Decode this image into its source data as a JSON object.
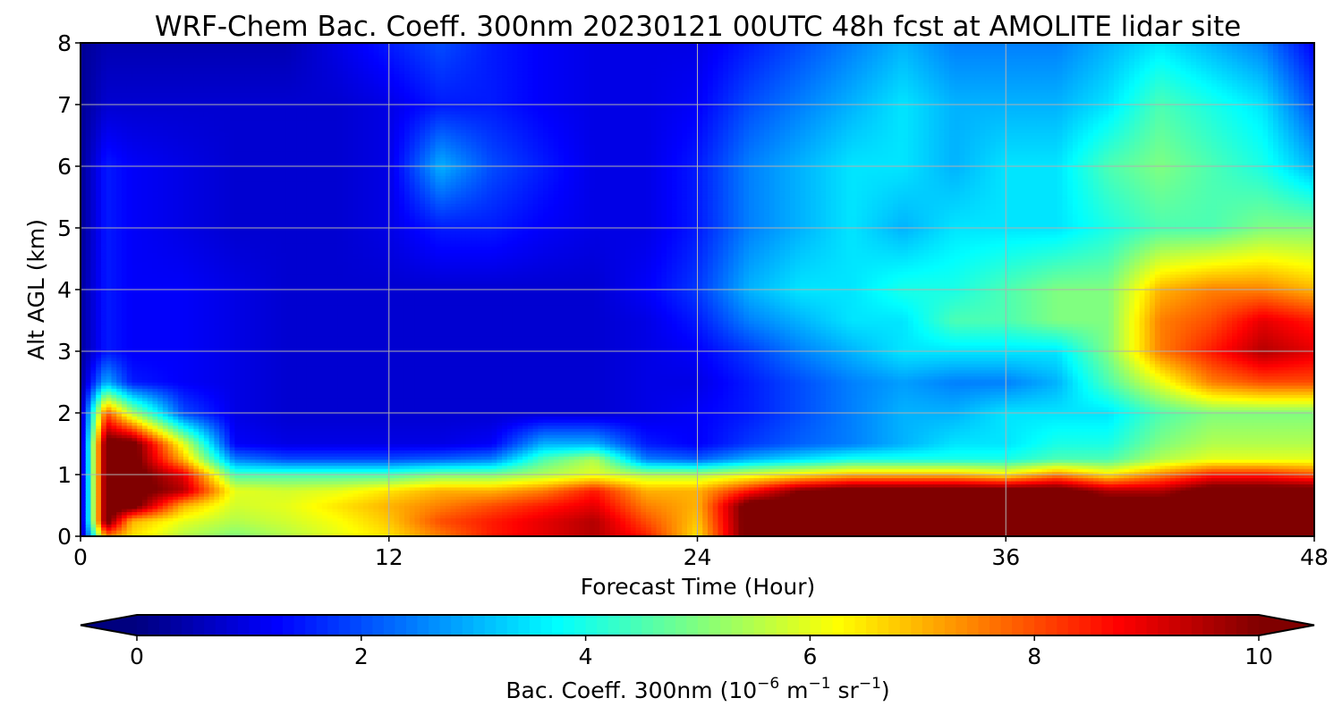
{
  "chart_data": {
    "type": "heatmap",
    "title": "WRF-Chem Bac. Coeff. 300nm  20230121 00UTC 48h fcst at AMOLITE lidar site",
    "xlabel": "Forecast Time (Hour)",
    "ylabel": "Alt AGL (km)",
    "xlim": [
      0,
      48
    ],
    "ylim": [
      0,
      8
    ],
    "xticks": [
      0,
      12,
      24,
      36,
      48
    ],
    "yticks": [
      0,
      1,
      2,
      3,
      4,
      5,
      6,
      7,
      8
    ],
    "grid": true,
    "colormap": "jet",
    "colorbar": {
      "label_prefix": "Bac. Coeff. 300nm  (10",
      "label_exp1": "−6",
      "label_mid": " m",
      "label_exp2": "−1",
      "label_mid2": " sr",
      "label_exp3": "−1",
      "label_suffix": ")",
      "vmin": 0,
      "vmax": 10,
      "ticks": [
        0,
        2,
        4,
        6,
        8,
        10
      ],
      "extend": "both"
    },
    "x": [
      0,
      1,
      2,
      4,
      6,
      8,
      10,
      12,
      14,
      16,
      18,
      20,
      22,
      24,
      26,
      28,
      30,
      32,
      34,
      36,
      38,
      40,
      42,
      44,
      46,
      48
    ],
    "y": [
      0,
      0.25,
      0.5,
      0.75,
      1,
      1.25,
      1.5,
      2,
      2.5,
      3,
      3.5,
      4,
      5,
      6,
      7,
      8
    ],
    "z": [
      [
        0.3,
        7.5,
        6.5,
        5.5,
        5.0,
        5.5,
        6.0,
        6.5,
        7.5,
        8.5,
        9.0,
        9.5,
        8.5,
        6.5,
        10.5,
        10.5,
        10.5,
        10.5,
        10.5,
        10.5,
        10.5,
        10.5,
        10.5,
        10.5,
        10.5,
        10.5
      ],
      [
        0.3,
        10.5,
        7.0,
        6.0,
        5.5,
        5.8,
        6.2,
        6.8,
        8.0,
        8.5,
        9.0,
        9.5,
        8.0,
        6.8,
        10.5,
        10.5,
        10.5,
        10.5,
        10.5,
        10.5,
        10.5,
        10.5,
        10.5,
        10.5,
        10.5,
        10.5
      ],
      [
        0.3,
        10.5,
        10.5,
        7.0,
        5.8,
        6.0,
        6.5,
        7.0,
        7.5,
        8.0,
        8.5,
        9.0,
        7.5,
        7.0,
        10.5,
        10.5,
        10.5,
        10.5,
        10.5,
        10.5,
        10.5,
        10.5,
        10.5,
        10.5,
        10.5,
        10.5
      ],
      [
        0.3,
        10.5,
        10.5,
        9.5,
        6.0,
        5.8,
        6.0,
        6.5,
        7.0,
        7.0,
        7.5,
        8.5,
        7.0,
        7.0,
        8.5,
        10.0,
        10.5,
        10.5,
        10.5,
        10.5,
        10.5,
        9.5,
        9.5,
        10.5,
        10.5,
        10.5
      ],
      [
        0.3,
        10.5,
        10.5,
        9.0,
        4.5,
        4.5,
        4.5,
        4.5,
        5.0,
        5.0,
        5.5,
        6.0,
        5.5,
        5.5,
        6.0,
        6.5,
        7.0,
        7.0,
        7.0,
        6.5,
        7.5,
        6.5,
        7.5,
        8.5,
        8.5,
        8.0
      ],
      [
        0.3,
        10.5,
        10.5,
        7.0,
        2.5,
        2.0,
        2.0,
        2.0,
        2.2,
        2.5,
        4.5,
        5.5,
        2.5,
        2.2,
        3.0,
        3.5,
        4.0,
        4.0,
        4.0,
        4.0,
        4.5,
        4.5,
        5.5,
        6.0,
        6.0,
        6.0
      ],
      [
        0.3,
        10.5,
        10.5,
        6.0,
        1.2,
        1.0,
        1.0,
        1.0,
        1.0,
        1.2,
        3.0,
        3.0,
        1.5,
        1.2,
        1.8,
        2.2,
        2.5,
        3.0,
        3.5,
        3.5,
        4.0,
        4.0,
        5.0,
        5.5,
        5.5,
        5.5
      ],
      [
        0.3,
        8.0,
        5.5,
        2.0,
        1.0,
        0.8,
        0.8,
        0.8,
        0.8,
        0.8,
        0.8,
        0.8,
        1.0,
        1.2,
        1.5,
        2.0,
        2.5,
        3.0,
        3.0,
        3.5,
        3.5,
        3.5,
        4.5,
        5.0,
        5.0,
        5.0
      ],
      [
        0.3,
        3.0,
        1.5,
        1.2,
        1.0,
        0.8,
        0.8,
        0.8,
        0.8,
        0.8,
        0.8,
        0.8,
        1.0,
        1.0,
        1.5,
        2.0,
        2.5,
        2.8,
        2.5,
        2.5,
        3.0,
        4.5,
        6.0,
        7.5,
        8.0,
        8.0
      ],
      [
        0.3,
        1.5,
        1.2,
        1.2,
        1.0,
        0.8,
        0.8,
        0.8,
        0.8,
        0.8,
        0.8,
        0.8,
        1.0,
        1.2,
        1.8,
        2.5,
        3.0,
        3.5,
        3.5,
        3.5,
        3.5,
        5.0,
        7.5,
        8.5,
        9.5,
        9.0
      ],
      [
        0.3,
        1.5,
        1.2,
        1.2,
        1.0,
        0.8,
        0.8,
        0.8,
        0.8,
        0.8,
        0.8,
        0.8,
        1.0,
        1.5,
        2.5,
        3.0,
        3.5,
        3.5,
        4.5,
        4.5,
        5.0,
        5.0,
        7.5,
        8.0,
        9.0,
        8.5
      ],
      [
        0.3,
        1.5,
        1.2,
        1.2,
        1.0,
        0.8,
        0.8,
        0.8,
        0.8,
        0.8,
        0.8,
        0.8,
        1.2,
        1.8,
        3.0,
        3.5,
        3.5,
        4.0,
        4.0,
        4.5,
        5.0,
        5.0,
        7.0,
        7.5,
        7.5,
        7.0
      ],
      [
        0.2,
        1.5,
        1.2,
        1.0,
        0.8,
        0.8,
        0.8,
        1.0,
        1.5,
        1.5,
        1.2,
        1.0,
        1.0,
        1.5,
        2.5,
        3.0,
        3.5,
        3.0,
        3.5,
        3.5,
        3.5,
        4.0,
        4.5,
        4.5,
        5.0,
        5.0
      ],
      [
        0.2,
        1.5,
        1.2,
        1.0,
        0.8,
        0.8,
        0.8,
        1.0,
        3.0,
        2.0,
        1.5,
        1.0,
        1.0,
        1.5,
        2.5,
        3.0,
        3.5,
        3.5,
        3.0,
        3.5,
        3.5,
        4.5,
        5.0,
        4.5,
        4.0,
        3.0
      ],
      [
        0.2,
        0.8,
        0.8,
        0.8,
        0.8,
        0.8,
        0.8,
        1.0,
        1.5,
        1.5,
        1.2,
        1.0,
        1.0,
        1.2,
        2.0,
        2.5,
        3.0,
        3.5,
        3.0,
        3.0,
        3.0,
        3.5,
        4.5,
        4.0,
        3.5,
        2.0
      ],
      [
        0.2,
        0.5,
        0.5,
        0.5,
        0.5,
        0.5,
        1.0,
        1.5,
        2.0,
        1.5,
        1.2,
        1.0,
        1.0,
        1.0,
        1.5,
        2.0,
        2.5,
        3.0,
        2.5,
        2.5,
        2.5,
        3.0,
        3.5,
        3.0,
        2.5,
        1.2
      ]
    ]
  }
}
